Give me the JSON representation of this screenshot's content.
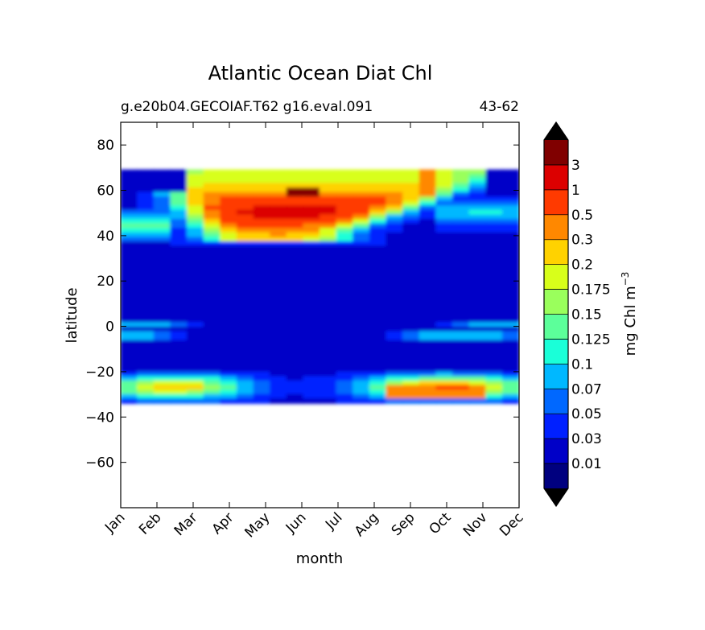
{
  "chart_data": {
    "type": "heatmap",
    "title": "Atlantic Ocean Diat Chl",
    "subtitle_left": "g.e20b04.GECOIAF.T62 g16.eval.091",
    "subtitle_right": "43-62",
    "xlabel": "month",
    "ylabel": "latitude",
    "colorbar_label": "mg Chl m",
    "colorbar_label_exponent": "−3",
    "x_ticks": [
      "Jan",
      "Feb",
      "Mar",
      "Apr",
      "May",
      "Jun",
      "Jul",
      "Aug",
      "Sep",
      "Oct",
      "Nov",
      "Dec"
    ],
    "ylim": [
      -80,
      90
    ],
    "y_ticks": [
      80,
      60,
      40,
      20,
      0,
      -20,
      -40,
      -60
    ],
    "y_tick_labels": [
      "80",
      "60",
      "40",
      "20",
      "0",
      "−20",
      "−40",
      "−60"
    ],
    "data_lat_range": [
      -34,
      69
    ],
    "levels": [
      "0.01",
      "0.03",
      "0.05",
      "0.07",
      "0.1",
      "0.125",
      "0.15",
      "0.175",
      "0.2",
      "0.3",
      "0.5",
      "1",
      "3"
    ],
    "colors": [
      "#00007f",
      "#0000c8",
      "#0020ff",
      "#0068ff",
      "#00b8ff",
      "#1affd8",
      "#5cff9a",
      "#9aff5c",
      "#d8ff1a",
      "#ffd200",
      "#ff8800",
      "#ff3a00",
      "#dc0000",
      "#800000"
    ],
    "grid": false,
    "legend": "colorbar-right"
  }
}
